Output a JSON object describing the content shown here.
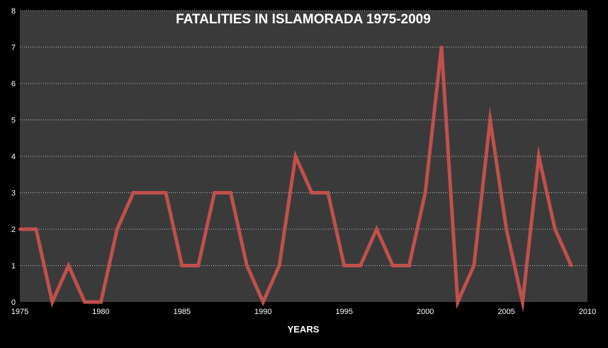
{
  "chart_data": {
    "type": "line",
    "title": "FATALITIES IN ISLAMORADA 1975-2009",
    "xlabel": "YEARS",
    "ylabel": "",
    "xlim": [
      1975,
      2010
    ],
    "ylim": [
      0,
      8
    ],
    "x_ticks": [
      1975,
      1980,
      1985,
      1990,
      1995,
      2000,
      2005,
      2010
    ],
    "y_ticks": [
      0,
      1,
      2,
      3,
      4,
      5,
      6,
      7,
      8
    ],
    "grid": true,
    "legend": "none",
    "colors": {
      "background": "#000000",
      "plot_area": "#3a3a3a",
      "grid": "#bfbfbf",
      "line": "#c0504d",
      "text": "#ffffff"
    },
    "series": [
      {
        "x": [
          1975,
          1976,
          1977,
          1978,
          1979,
          1980,
          1981,
          1982,
          1983,
          1984,
          1985,
          1986,
          1987,
          1988,
          1989,
          1990,
          1991,
          1992,
          1993,
          1994,
          1995,
          1996,
          1997,
          1998,
          1999,
          2000,
          2001,
          2002,
          2003,
          2004,
          2005,
          2006,
          2007,
          2008,
          2009
        ],
        "values": [
          2,
          2,
          0,
          1,
          0,
          0,
          2,
          3,
          3,
          3,
          1,
          1,
          3,
          3,
          1,
          0,
          1,
          4,
          3,
          3,
          1,
          1,
          2,
          1,
          1,
          3,
          7,
          0,
          1,
          5,
          2,
          0,
          4,
          2,
          1
        ]
      }
    ]
  }
}
